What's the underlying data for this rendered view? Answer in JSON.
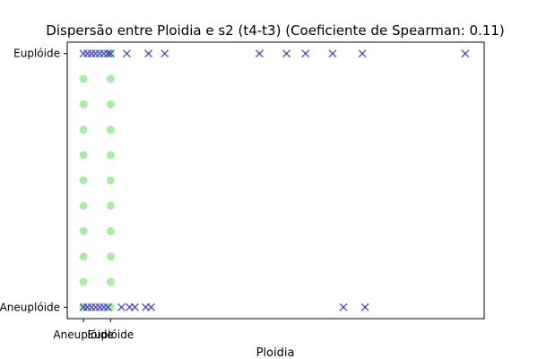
{
  "chart_data": {
    "type": "scatter",
    "title": "Dispersão entre Ploidia e s2 (t4-t3) (Coeficiente de Spearman: 0.11)",
    "xlabel": "Ploidia",
    "ylabel": "",
    "x_ticks": [
      "Aneuplóide",
      "Euplóide"
    ],
    "y_ticks": [
      "Aneuplóide",
      "Euplóide"
    ],
    "series": [
      {
        "marker": "circle",
        "color": "#90e38a",
        "points": [
          {
            "x": 0,
            "y": 0.9
          },
          {
            "x": 0,
            "y": 0.8
          },
          {
            "x": 0,
            "y": 0.7
          },
          {
            "x": 0,
            "y": 0.6
          },
          {
            "x": 0,
            "y": 0.5
          },
          {
            "x": 0,
            "y": 0.4
          },
          {
            "x": 0,
            "y": 0.3
          },
          {
            "x": 0,
            "y": 0.2
          },
          {
            "x": 0,
            "y": 0.1
          },
          {
            "x": 0,
            "y": 0.0
          },
          {
            "x": 1,
            "y": 0.9
          },
          {
            "x": 1,
            "y": 0.8
          },
          {
            "x": 1,
            "y": 0.7
          },
          {
            "x": 1,
            "y": 0.6
          },
          {
            "x": 1,
            "y": 0.5
          },
          {
            "x": 1,
            "y": 0.4
          },
          {
            "x": 1,
            "y": 0.3
          },
          {
            "x": 1,
            "y": 0.2
          },
          {
            "x": 1,
            "y": 0.1
          },
          {
            "x": 1,
            "y": 0.0
          },
          {
            "x": 1,
            "y": 1.0
          }
        ]
      },
      {
        "marker": "x",
        "color": "#2a2fa0",
        "points": [
          {
            "x": 0.0,
            "y": 1
          },
          {
            "x": 0.15,
            "y": 1
          },
          {
            "x": 0.3,
            "y": 1
          },
          {
            "x": 0.45,
            "y": 1
          },
          {
            "x": 0.6,
            "y": 1
          },
          {
            "x": 0.75,
            "y": 1
          },
          {
            "x": 0.9,
            "y": 1
          },
          {
            "x": 1.0,
            "y": 1
          },
          {
            "x": 1.6,
            "y": 1
          },
          {
            "x": 2.4,
            "y": 1
          },
          {
            "x": 3.0,
            "y": 1
          },
          {
            "x": 6.5,
            "y": 1
          },
          {
            "x": 7.5,
            "y": 1
          },
          {
            "x": 8.2,
            "y": 1
          },
          {
            "x": 9.2,
            "y": 1
          },
          {
            "x": 10.3,
            "y": 1
          },
          {
            "x": 14.1,
            "y": 1
          },
          {
            "x": 0.0,
            "y": 0
          },
          {
            "x": 0.15,
            "y": 0
          },
          {
            "x": 0.3,
            "y": 0
          },
          {
            "x": 0.45,
            "y": 0
          },
          {
            "x": 0.6,
            "y": 0
          },
          {
            "x": 0.75,
            "y": 0
          },
          {
            "x": 0.9,
            "y": 0
          },
          {
            "x": 1.4,
            "y": 0
          },
          {
            "x": 1.7,
            "y": 0
          },
          {
            "x": 1.9,
            "y": 0
          },
          {
            "x": 2.3,
            "y": 0
          },
          {
            "x": 2.5,
            "y": 0
          },
          {
            "x": 9.6,
            "y": 0
          },
          {
            "x": 10.4,
            "y": 0
          }
        ]
      }
    ],
    "xlim": [
      -0.6,
      14.8
    ],
    "ylim": [
      -0.045,
      1.045
    ],
    "grid": false
  }
}
